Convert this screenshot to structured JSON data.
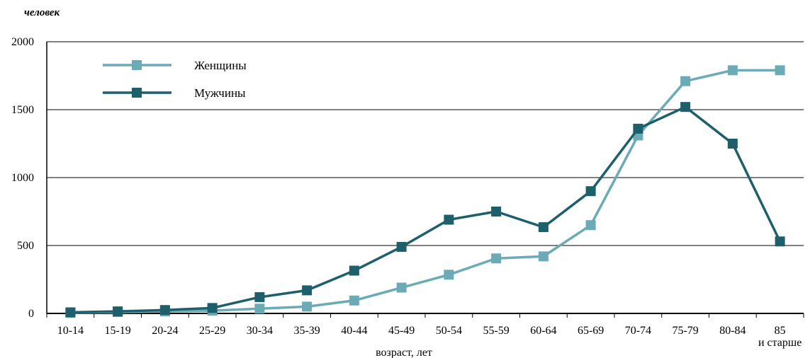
{
  "chart_data": {
    "type": "line",
    "title": "",
    "unit_label": "человек",
    "xlabel": "возраст, лет",
    "ylabel": "",
    "ylim": [
      0,
      2000
    ],
    "yticks": [
      "0",
      "500",
      "1000",
      "1500",
      "2000"
    ],
    "grid": "horizontal",
    "legend_position": "top-left",
    "categories": [
      "10-14",
      "15-19",
      "20-24",
      "25-29",
      "30-34",
      "35-39",
      "40-44",
      "45-49",
      "50-54",
      "55-59",
      "60-64",
      "65-69",
      "70-74",
      "75-79",
      "80-84",
      "85 и старше"
    ],
    "category_labels": [
      [
        "10-14"
      ],
      [
        "15-19"
      ],
      [
        "20-24"
      ],
      [
        "25-29"
      ],
      [
        "30-34"
      ],
      [
        "35-39"
      ],
      [
        "40-44"
      ],
      [
        "45-49"
      ],
      [
        "50-54"
      ],
      [
        "55-59"
      ],
      [
        "60-64"
      ],
      [
        "65-69"
      ],
      [
        "70-74"
      ],
      [
        "75-79"
      ],
      [
        "80-84"
      ],
      [
        "85",
        "и старше"
      ]
    ],
    "series": [
      {
        "name": "Женщины",
        "color": "#6aabb6",
        "values": [
          5,
          10,
          15,
          20,
          35,
          50,
          95,
          190,
          285,
          405,
          420,
          650,
          1310,
          1710,
          1790,
          1790
        ]
      },
      {
        "name": "Мужчины",
        "color": "#1d5f6b",
        "values": [
          8,
          15,
          25,
          40,
          120,
          170,
          315,
          490,
          690,
          750,
          635,
          900,
          1360,
          1520,
          1250,
          530
        ]
      }
    ]
  }
}
